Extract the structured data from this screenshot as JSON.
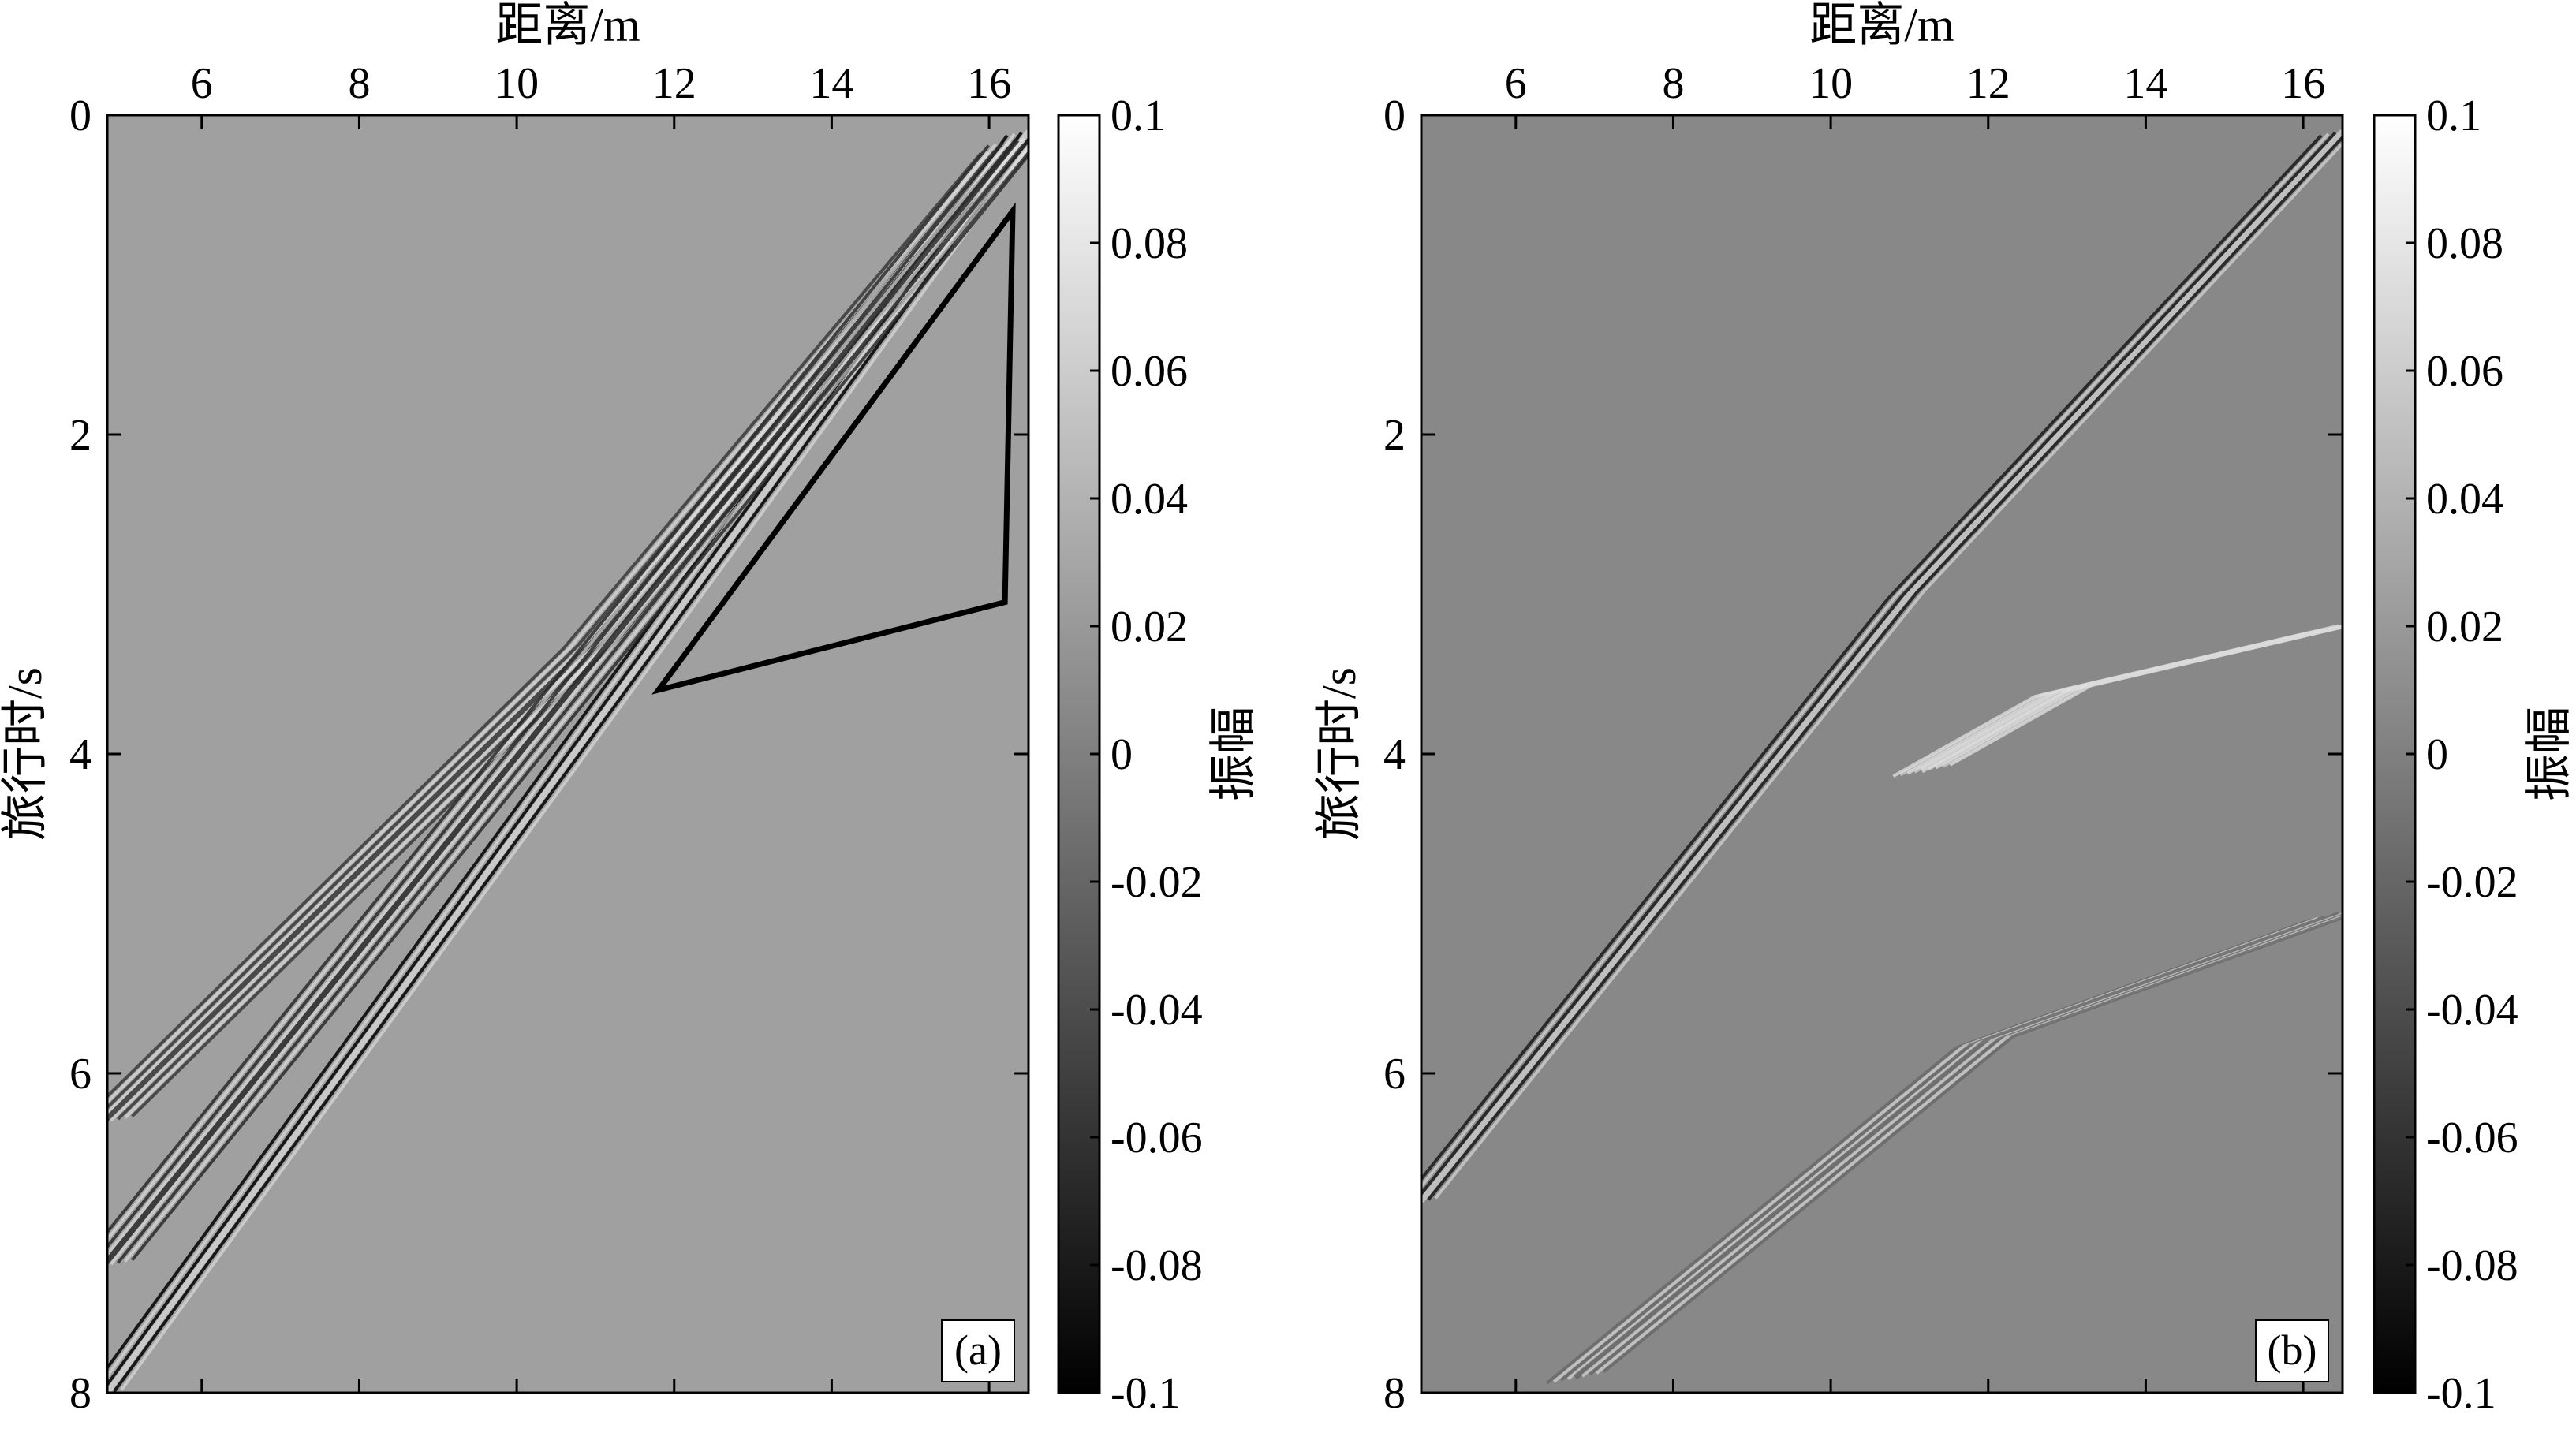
{
  "chart_data": [
    {
      "type": "heatmap",
      "panel_label": "(a)",
      "xlabel": "距离/m",
      "ylabel": "旅行时/s",
      "xlim": [
        4.8,
        16.5
      ],
      "ylim": [
        8,
        0
      ],
      "x_ticks": [
        6,
        8,
        10,
        12,
        14,
        16
      ],
      "y_ticks": [
        0,
        2,
        4,
        6,
        8
      ],
      "x_axis_position": "top",
      "colorbar": {
        "label": "振幅",
        "range": [
          -0.1,
          0.1
        ],
        "ticks": [
          "0.1",
          "0.08",
          "0.06",
          "0.04",
          "0.02",
          "0",
          "-0.02",
          "-0.04",
          "-0.06",
          "-0.08",
          "-0.1"
        ],
        "colormap": "gray",
        "low_color": "#000000",
        "high_color": "#ffffff"
      },
      "background_color": "#a0a0a0",
      "events": [
        {
          "kind": "direct-wave",
          "points": [
            [
              16.5,
              0.1
            ],
            [
              4.8,
              8.0
            ]
          ],
          "color": "#000000"
        },
        {
          "kind": "wavetrain-upper",
          "points": [
            [
              16.3,
              0.2
            ],
            [
              11.0,
              3.3
            ],
            [
              4.8,
              6.3
            ]
          ],
          "color": "#3a3a3a"
        },
        {
          "kind": "wavetrain-mid",
          "points": [
            [
              16.4,
              0.15
            ],
            [
              4.8,
              7.2
            ]
          ],
          "color": "#2a2a2a"
        }
      ],
      "annotation_polygon": {
        "points": [
          [
            16.3,
            0.6
          ],
          [
            16.2,
            3.05
          ],
          [
            11.8,
            3.6
          ]
        ],
        "color": "#000000"
      }
    },
    {
      "type": "heatmap",
      "panel_label": "(b)",
      "xlabel": "距离/m",
      "ylabel": "旅行时/s",
      "xlim": [
        4.8,
        16.5
      ],
      "ylim": [
        8,
        0
      ],
      "x_ticks": [
        6,
        8,
        10,
        12,
        14,
        16
      ],
      "y_ticks": [
        0,
        2,
        4,
        6,
        8
      ],
      "x_axis_position": "top",
      "colorbar": {
        "label": "振幅",
        "range": [
          -0.1,
          0.1
        ],
        "ticks": [
          "0.1",
          "0.08",
          "0.06",
          "0.04",
          "0.02",
          "0",
          "-0.02",
          "-0.04",
          "-0.06",
          "-0.08",
          "-0.1"
        ],
        "colormap": "gray",
        "low_color": "#000000",
        "high_color": "#ffffff"
      },
      "background_color": "#888888",
      "events": [
        {
          "kind": "direct-wave",
          "points": [
            [
              16.5,
              0.1
            ],
            [
              11.0,
              3.0
            ],
            [
              4.8,
              6.8
            ]
          ],
          "color": "#1a1a1a"
        },
        {
          "kind": "reflection",
          "points": [
            [
              16.5,
              3.2
            ],
            [
              13.0,
              3.6
            ],
            [
              11.2,
              4.1
            ]
          ],
          "color": "#d8d8d8"
        },
        {
          "kind": "lower-event",
          "points": [
            [
              16.5,
              5.0
            ],
            [
              12.0,
              5.8
            ],
            [
              6.8,
              7.9
            ]
          ],
          "color": "#6a6a6a"
        }
      ]
    }
  ]
}
